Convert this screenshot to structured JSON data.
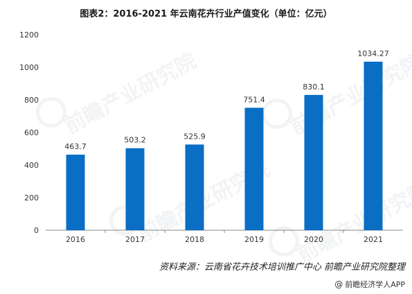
{
  "title": "图表2：2016-2021 年云南花卉行业产值变化（单位：亿元）",
  "source": "资料来源：云南省花卉技术培训推广中心  前瞻产业研究院整理",
  "app_credit": "前瞻经济学人APP",
  "watermark_text": "前瞻产业研究院",
  "colors": {
    "bar": "#0A6EC4",
    "axis": "#888888",
    "grid": "#d9d9d9"
  },
  "chart_data": {
    "type": "bar",
    "title": "图表2：2016-2021 年云南花卉行业产值变化（单位：亿元）",
    "categories": [
      "2016",
      "2017",
      "2018",
      "2019",
      "2020",
      "2021"
    ],
    "values": [
      463.7,
      503.2,
      525.9,
      751.4,
      830.1,
      1034.27
    ],
    "value_labels": [
      "463.7",
      "503.2",
      "525.9",
      "751.4",
      "830.1",
      "1034.27"
    ],
    "xlabel": "",
    "ylabel": "",
    "ylim": [
      0,
      1200
    ],
    "yticks": [
      0,
      200,
      400,
      600,
      800,
      1000,
      1200
    ],
    "grid": false,
    "legend": "none"
  }
}
